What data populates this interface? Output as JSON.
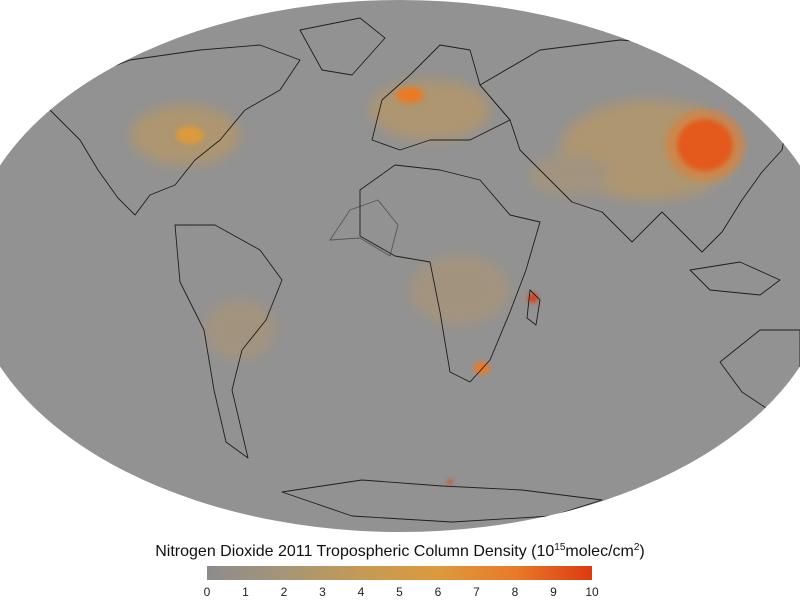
{
  "map": {
    "title_parts": [
      "Nitrogen Dioxide 2011 Tropospheric Column Density (10",
      "15",
      "molec/cm",
      "2",
      ")"
    ],
    "colorbar": {
      "lim": [
        0,
        10
      ],
      "ticks": [
        0,
        1,
        2,
        3,
        4,
        5,
        6,
        7,
        8,
        9,
        10
      ],
      "colors": [
        "#8c8c8c",
        "#a69577",
        "#c49a55",
        "#dc9a3c",
        "#e97a28",
        "#dd3a10"
      ]
    }
  }
}
